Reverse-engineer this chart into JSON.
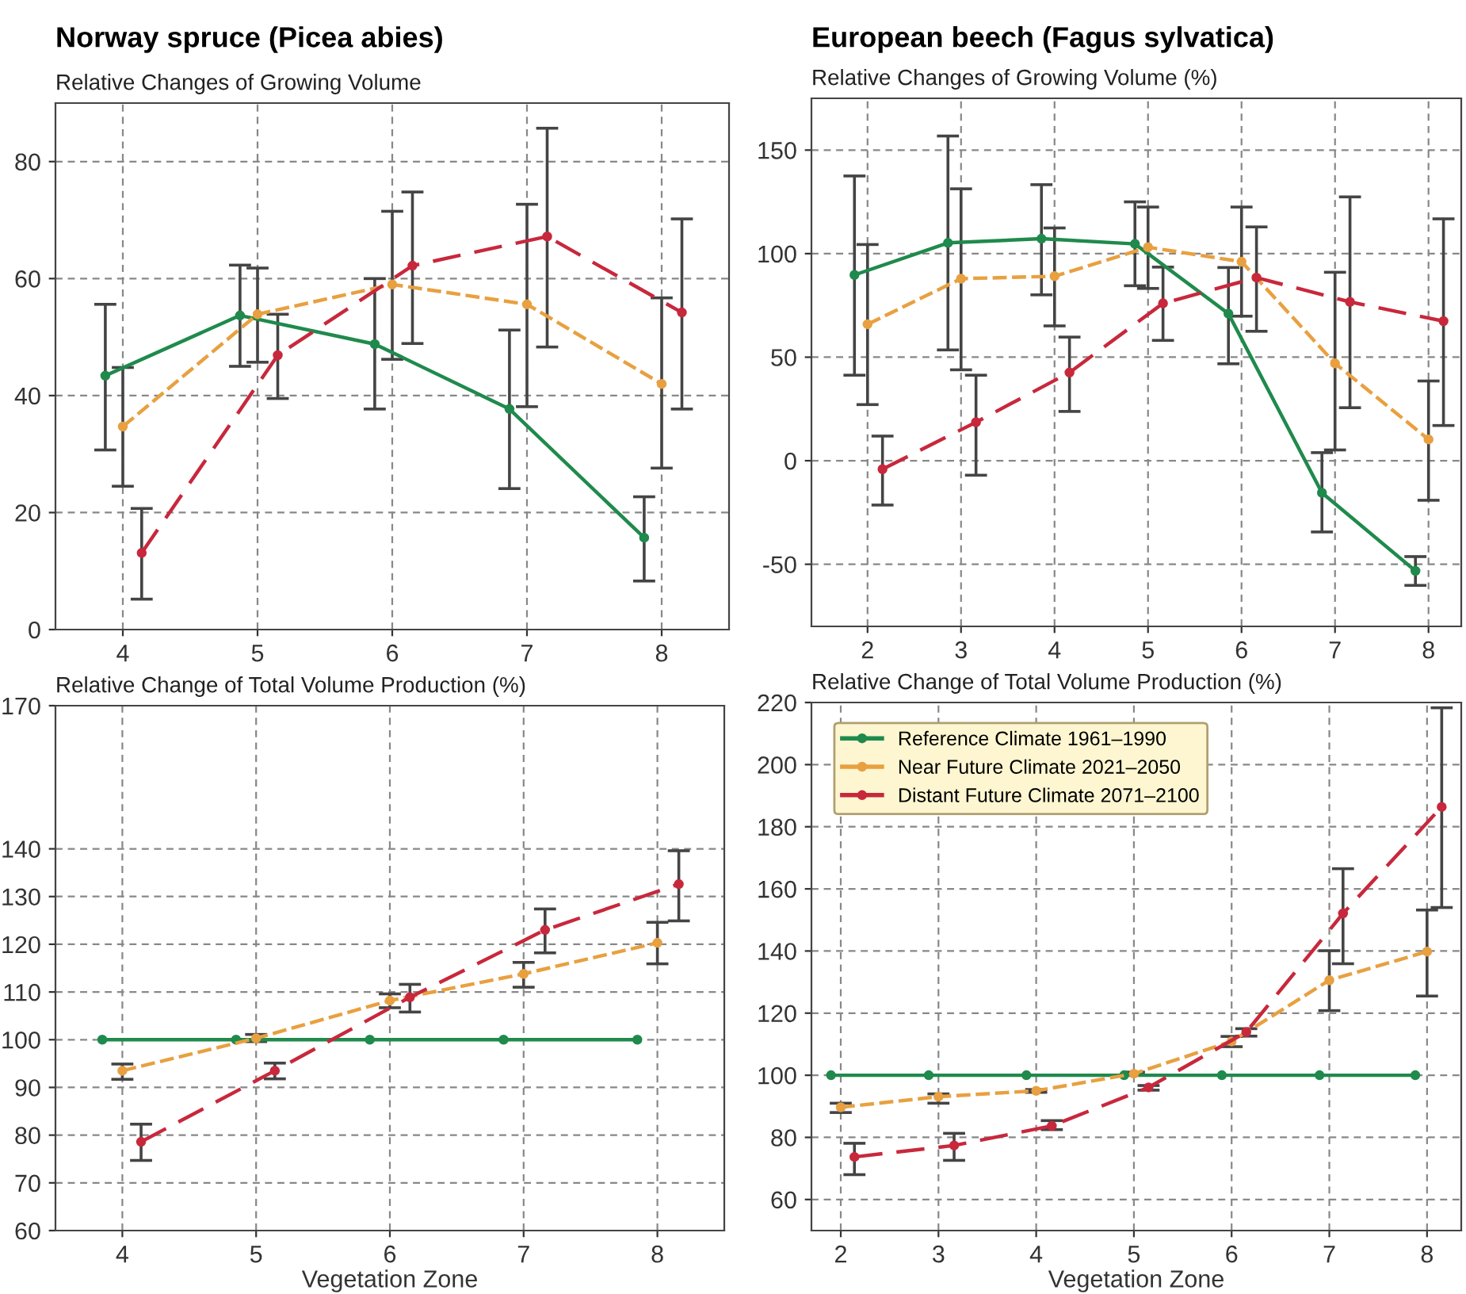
{
  "chart_data": [
    {
      "type": "line",
      "title": "Norway spruce (Picea abies)",
      "ylabel": "Relative Changes of Growing Volume",
      "xlim": [
        3.5,
        8.5
      ],
      "ylim": [
        0,
        90
      ],
      "xticks": [
        4,
        5,
        6,
        7,
        8
      ],
      "yticks": [
        0,
        20,
        40,
        60,
        80
      ],
      "grid": true,
      "marker": "circle",
      "legend": false,
      "series": [
        {
          "color": "#1f8a4c",
          "line_style": "solid",
          "x": [
            3.87,
            4.87,
            5.87,
            6.87,
            7.87
          ],
          "values": [
            43.4,
            53.7,
            48.8,
            37.7,
            15.7
          ],
          "errors": [
            [
              30.7,
              55.6
            ],
            [
              45,
              62.3
            ],
            [
              37.7,
              60
            ],
            [
              24.1,
              51.2
            ],
            [
              8.3,
              22.7
            ]
          ]
        },
        {
          "color": "#e8a040",
          "line_style": "dashed",
          "x": [
            4,
            5,
            6,
            7,
            8
          ],
          "values": [
            34.7,
            53.9,
            59,
            55.6,
            42
          ],
          "errors": [
            [
              24.5,
              44.8
            ],
            [
              45.7,
              61.8
            ],
            [
              46.2,
              71.5
            ],
            [
              38.1,
              72.7
            ],
            [
              27.6,
              56.7
            ]
          ]
        },
        {
          "color": "#c8283c",
          "line_style": "dashed",
          "x": [
            4.14,
            5.15,
            6.15,
            7.15,
            8.15
          ],
          "values": [
            13.1,
            46.9,
            62.2,
            67.2,
            54.2
          ],
          "errors": [
            [
              5.2,
              20.7
            ],
            [
              39.5,
              53.9
            ],
            [
              48.9,
              74.8
            ],
            [
              48.3,
              85.7
            ],
            [
              37.7,
              70.2
            ]
          ]
        }
      ]
    },
    {
      "type": "line",
      "title": "European beech (Fagus sylvatica)",
      "ylabel": "Relative Changes of Growing Volume (%)",
      "xlim": [
        1.4,
        8.35
      ],
      "ylim": [
        -80,
        175
      ],
      "xticks": [
        2,
        3,
        4,
        5,
        6,
        7,
        8
      ],
      "yticks": [
        -50,
        0,
        50,
        100,
        150
      ],
      "grid": true,
      "marker": "circle",
      "legend": false,
      "series": [
        {
          "color": "#1f8a4c",
          "line_style": "solid",
          "x": [
            1.86,
            2.86,
            3.86,
            4.86,
            5.86,
            6.86,
            7.86
          ],
          "values": [
            89.7,
            105.2,
            107.2,
            104.7,
            71,
            -15.5,
            -53.2
          ],
          "errors": [
            [
              41.3,
              137.5
            ],
            [
              53.5,
              156.8
            ],
            [
              80.1,
              133.3
            ],
            [
              84.5,
              125
            ],
            [
              46.8,
              93.3
            ],
            [
              -34.4,
              3.9
            ],
            [
              -60.2,
              -46.3
            ]
          ]
        },
        {
          "color": "#e8a040",
          "line_style": "dashed",
          "x": [
            2,
            3,
            4,
            5,
            6,
            7,
            8
          ],
          "values": [
            65.9,
            87.9,
            89.1,
            103.1,
            96.1,
            47,
            10.3
          ],
          "errors": [
            [
              27.1,
              104.4
            ],
            [
              43.9,
              131.3
            ],
            [
              65.1,
              112.4
            ],
            [
              83.2,
              122.5
            ],
            [
              69.8,
              122.5
            ],
            [
              5.2,
              91
            ],
            [
              -19.1,
              38.5
            ]
          ]
        },
        {
          "color": "#c8283c",
          "line_style": "dashed",
          "x": [
            2.16,
            3.16,
            4.16,
            5.16,
            6.16,
            7.16,
            8.16
          ],
          "values": [
            -4.1,
            18.6,
            42.6,
            76,
            88.4,
            76.7,
            67.4
          ],
          "errors": [
            [
              -21.4,
              11.9
            ],
            [
              -7,
              41.3
            ],
            [
              23.8,
              59.7
            ],
            [
              58.1,
              93.5
            ],
            [
              62.5,
              112.9
            ],
            [
              25.6,
              127.4
            ],
            [
              17,
              116.8
            ]
          ]
        }
      ]
    },
    {
      "type": "line",
      "ylabel": "Relative Change of Total Volume Production (%)",
      "xlabel": "Vegetation Zone",
      "xlim": [
        3.5,
        8.5
      ],
      "ylim": [
        60,
        170
      ],
      "xticks": [
        4,
        5,
        6,
        7,
        8
      ],
      "yticks": [
        60,
        70,
        80,
        90,
        100,
        110,
        120,
        130,
        140,
        170
      ],
      "grid": true,
      "marker": "circle",
      "legend": false,
      "series": [
        {
          "color": "#1f8a4c",
          "line_style": "solid",
          "x": [
            3.85,
            4.85,
            5.85,
            6.85,
            7.85
          ],
          "values": [
            100,
            100,
            100,
            100,
            100
          ]
        },
        {
          "color": "#e8a040",
          "line_style": "dashed",
          "x": [
            4,
            5,
            6,
            7,
            8
          ],
          "values": [
            93.5,
            100.3,
            108.2,
            113.8,
            120.3
          ],
          "errors": [
            [
              91.7,
              94.9
            ],
            [
              99.6,
              101.1
            ],
            [
              106.7,
              109.6
            ],
            [
              111,
              116.2
            ],
            [
              115.9,
              124.6
            ]
          ]
        },
        {
          "color": "#c8283c",
          "line_style": "dashed",
          "x": [
            4.14,
            5.14,
            6.15,
            7.16,
            8.16
          ],
          "values": [
            78.6,
            93.5,
            108.9,
            123,
            132.6
          ],
          "errors": [
            [
              74.7,
              82.3
            ],
            [
              91.8,
              95.1
            ],
            [
              105.8,
              111.6
            ],
            [
              118.2,
              127.4
            ],
            [
              124.9,
              139.6
            ]
          ]
        }
      ]
    },
    {
      "type": "line",
      "ylabel": "Relative Change of Total Volume Production (%)",
      "xlabel": "Vegetation Zone",
      "xlim": [
        1.7,
        8.35
      ],
      "ylim": [
        50,
        220
      ],
      "xticks": [
        2,
        3,
        4,
        5,
        6,
        7,
        8
      ],
      "yticks": [
        60,
        80,
        100,
        120,
        140,
        160,
        180,
        200,
        220
      ],
      "grid": true,
      "marker": "circle",
      "legend": "top left",
      "series": [
        {
          "name": "Reference Climate 1961–1990",
          "color": "#1f8a4c",
          "line_style": "solid",
          "x": [
            1.9,
            2.9,
            3.9,
            4.9,
            5.9,
            6.9,
            7.88
          ],
          "values": [
            100,
            100,
            100,
            100,
            100,
            100,
            100
          ]
        },
        {
          "name": "Near Future Climate 2021–2050",
          "color": "#e8a040",
          "line_style": "dashed",
          "x": [
            2,
            3,
            4,
            5,
            6,
            7,
            8
          ],
          "values": [
            89.7,
            93.1,
            95,
            100.5,
            110.9,
            130.6,
            139.8
          ],
          "errors": [
            [
              88,
              91
            ],
            [
              91,
              94
            ],
            [
              94.5,
              95.4
            ],
            [
              100,
              101
            ],
            [
              109.2,
              112.5
            ],
            [
              120.8,
              140.1
            ],
            [
              125.5,
              153.2
            ]
          ]
        },
        {
          "name": "Distant Future Climate 2071–2100",
          "color": "#c8283c",
          "line_style": "dashed",
          "x": [
            2.14,
            3.16,
            4.16,
            5.15,
            6.15,
            7.14,
            8.15
          ],
          "values": [
            73.7,
            77.4,
            83.7,
            96.1,
            113.9,
            152.1,
            186.4
          ],
          "errors": [
            [
              68,
              78.1
            ],
            [
              72.6,
              81.3
            ],
            [
              82.5,
              85.4
            ],
            [
              95.2,
              96.7
            ],
            [
              112.6,
              115
            ],
            [
              135.9,
              166.5
            ],
            [
              154,
              218.3
            ]
          ]
        }
      ]
    }
  ]
}
